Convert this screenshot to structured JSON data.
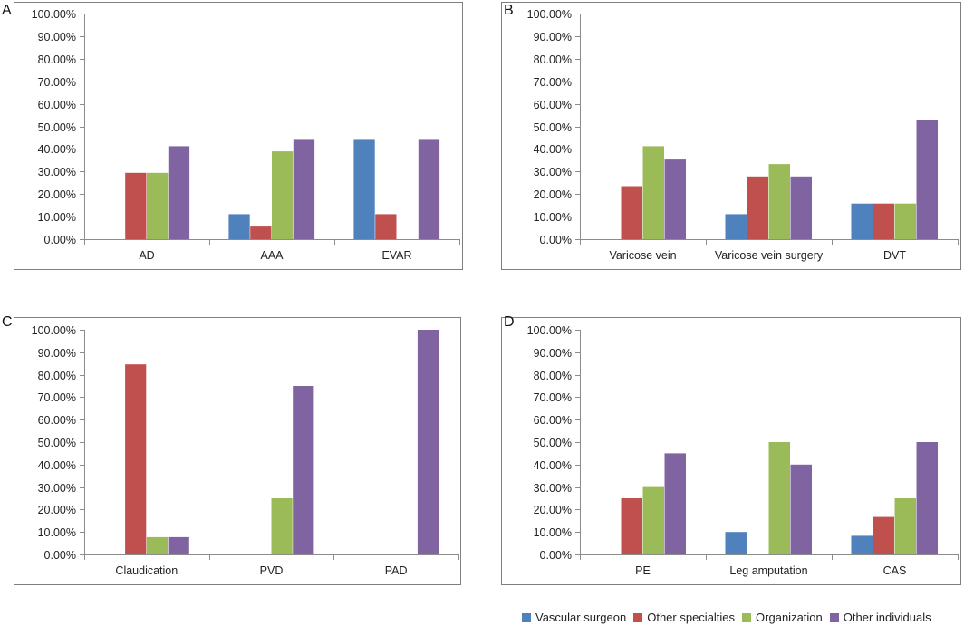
{
  "colors": {
    "vascular_surgeon": "#4F81BD",
    "other_specialties": "#C0504D",
    "organization": "#9BBB59",
    "other_individuals": "#8064A2",
    "frame": "#7f7f7f",
    "axis": "#8c8c8c"
  },
  "legend": [
    {
      "name": "Vascular surgeon",
      "color": "#4F81BD"
    },
    {
      "name": "Other specialties",
      "color": "#C0504D"
    },
    {
      "name": "Organization",
      "color": "#9BBB59"
    },
    {
      "name": "Other individuals",
      "color": "#8064A2"
    }
  ],
  "chart_data": [
    {
      "panel": "A",
      "type": "bar",
      "categories": [
        "AD",
        "AAA",
        "EVAR"
      ],
      "ylim": [
        0,
        100
      ],
      "yticks": [
        "0.00%",
        "10.00%",
        "20.00%",
        "30.00%",
        "40.00%",
        "50.00%",
        "60.00%",
        "70.00%",
        "80.00%",
        "90.00%",
        "100.00%"
      ],
      "series": [
        {
          "name": "Vascular surgeon",
          "values": [
            0,
            11.1,
            44.4
          ]
        },
        {
          "name": "Other specialties",
          "values": [
            29.4,
            5.6,
            11.1
          ]
        },
        {
          "name": "Organization",
          "values": [
            29.4,
            38.9,
            0
          ]
        },
        {
          "name": "Other individuals",
          "values": [
            41.2,
            44.4,
            44.4
          ]
        }
      ]
    },
    {
      "panel": "B",
      "type": "bar",
      "categories": [
        "Varicose vein",
        "Varicose vein surgery",
        "DVT"
      ],
      "ylim": [
        0,
        100
      ],
      "yticks": [
        "0.00%",
        "10.00%",
        "20.00%",
        "30.00%",
        "40.00%",
        "50.00%",
        "60.00%",
        "70.00%",
        "80.00%",
        "90.00%",
        "100.00%"
      ],
      "series": [
        {
          "name": "Vascular surgeon",
          "values": [
            0,
            11.1,
            15.8
          ]
        },
        {
          "name": "Other specialties",
          "values": [
            23.5,
            27.8,
            15.8
          ]
        },
        {
          "name": "Organization",
          "values": [
            41.2,
            33.3,
            15.8
          ]
        },
        {
          "name": "Other individuals",
          "values": [
            35.3,
            27.8,
            52.6
          ]
        }
      ]
    },
    {
      "panel": "C",
      "type": "bar",
      "categories": [
        "Claudication",
        "PVD",
        "PAD"
      ],
      "ylim": [
        0,
        100
      ],
      "yticks": [
        "0.00%",
        "10.00%",
        "20.00%",
        "30.00%",
        "40.00%",
        "50.00%",
        "60.00%",
        "70.00%",
        "80.00%",
        "90.00%",
        "100.00%"
      ],
      "series": [
        {
          "name": "Vascular surgeon",
          "values": [
            0,
            0,
            0
          ]
        },
        {
          "name": "Other specialties",
          "values": [
            84.6,
            0,
            0
          ]
        },
        {
          "name": "Organization",
          "values": [
            7.7,
            25,
            0
          ]
        },
        {
          "name": "Other individuals",
          "values": [
            7.7,
            75,
            100
          ]
        }
      ]
    },
    {
      "panel": "D",
      "type": "bar",
      "categories": [
        "PE",
        "Leg amputation",
        "CAS"
      ],
      "ylim": [
        0,
        100
      ],
      "yticks": [
        "0.00%",
        "10.00%",
        "20.00%",
        "30.00%",
        "40.00%",
        "50.00%",
        "60.00%",
        "70.00%",
        "80.00%",
        "90.00%",
        "100.00%"
      ],
      "series": [
        {
          "name": "Vascular surgeon",
          "values": [
            0,
            10,
            8.3
          ]
        },
        {
          "name": "Other specialties",
          "values": [
            25,
            0,
            16.7
          ]
        },
        {
          "name": "Organization",
          "values": [
            30,
            50,
            25
          ]
        },
        {
          "name": "Other individuals",
          "values": [
            45,
            40,
            50
          ]
        }
      ]
    }
  ]
}
